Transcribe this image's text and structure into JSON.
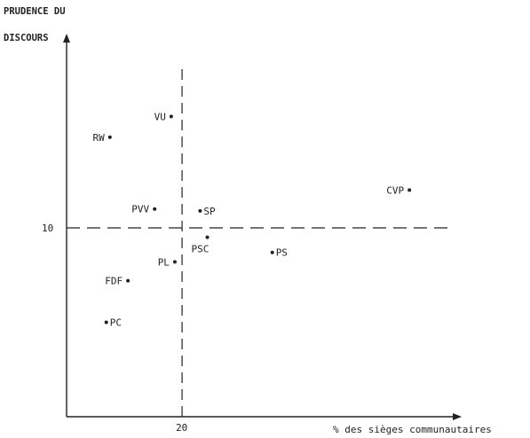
{
  "chart_data": {
    "type": "scatter",
    "title": "",
    "ylabel_line1": "PRUDENCE DU",
    "ylabel_line2": "DISCOURS",
    "xlabel": "% des sièges communautaires",
    "x_tick_labels": [
      {
        "value": 20,
        "label": "20"
      }
    ],
    "y_tick_labels": [
      {
        "value": 10,
        "label": "10"
      }
    ],
    "xlim": [
      4,
      58
    ],
    "ylim": [
      0,
      20
    ],
    "reference_lines": {
      "x": 20,
      "y": 10,
      "style": "dashed"
    },
    "grid": false,
    "points": [
      {
        "name": "RW",
        "x": 10,
        "y": 14.8,
        "label_side": "left"
      },
      {
        "name": "VU",
        "x": 18.5,
        "y": 15.9,
        "label_side": "left"
      },
      {
        "name": "PVV",
        "x": 16.2,
        "y": 11.0,
        "label_side": "left"
      },
      {
        "name": "SP",
        "x": 22.5,
        "y": 10.9,
        "label_side": "right"
      },
      {
        "name": "PL",
        "x": 19.0,
        "y": 8.2,
        "label_side": "left"
      },
      {
        "name": "PSC",
        "x": 23.5,
        "y": 9.5,
        "label_side": "below-left"
      },
      {
        "name": "FDF",
        "x": 12.5,
        "y": 7.2,
        "label_side": "left"
      },
      {
        "name": "PC",
        "x": 9.5,
        "y": 5.0,
        "label_side": "right"
      },
      {
        "name": "CVP",
        "x": 51.5,
        "y": 12.0,
        "label_side": "left"
      },
      {
        "name": "PS",
        "x": 32.5,
        "y": 8.7,
        "label_side": "right"
      }
    ]
  }
}
